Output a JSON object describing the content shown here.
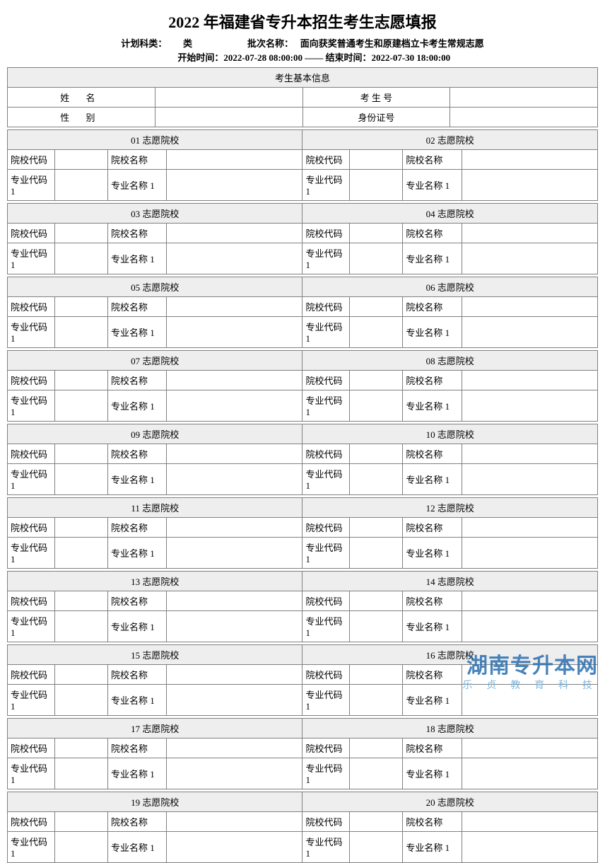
{
  "title": "2022 年福建省专升本招生考生志愿填报",
  "meta": {
    "plan_label": "计划科类：",
    "plan_value": "类",
    "batch_label": "批次名称：",
    "batch_value": "面向获奖普通考生和原建档立卡考生常规志愿",
    "start_label": "开始时间：",
    "start_value": "2022-07-28 08:00:00",
    "sep": "——",
    "end_label": "结束时间：",
    "end_value": "2022-07-30 18:00:00"
  },
  "basic": {
    "header": "考生基本信息",
    "name_label": "姓 名",
    "exam_no_label": "考 生 号",
    "gender_label": "性 别",
    "id_label": "身份证号"
  },
  "labels": {
    "school_code": "院校代码",
    "school_name": "院校名称",
    "major_code": "专业代码 1",
    "major_name": "专业名称 1"
  },
  "volunteers": [
    "01 志愿院校",
    "02 志愿院校",
    "03 志愿院校",
    "04 志愿院校",
    "05 志愿院校",
    "06 志愿院校",
    "07 志愿院校",
    "08 志愿院校",
    "09 志愿院校",
    "10 志愿院校",
    "11 志愿院校",
    "12 志愿院校",
    "13 志愿院校",
    "14 志愿院校",
    "15 志愿院校",
    "16 志愿院校",
    "17 志愿院校",
    "18 志愿院校",
    "19 志愿院校",
    "20 志愿院校"
  ],
  "watermark": {
    "main": "湖南专升本网",
    "sub": "乐 贞 教 育 科 技"
  },
  "colors": {
    "border": "#808080",
    "header_bg": "#eeeeee",
    "wm_main": "#2a6fb0",
    "wm_sub": "#6aa9d8"
  }
}
